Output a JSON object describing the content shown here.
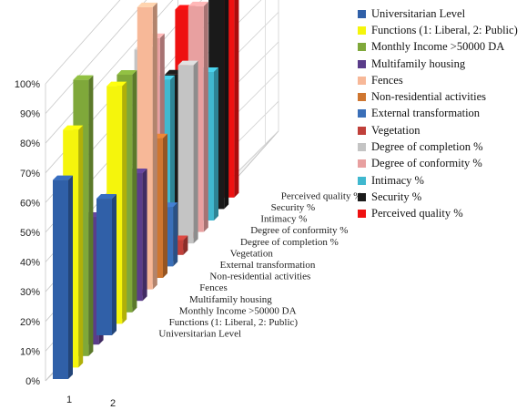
{
  "chart_data": {
    "type": "bar",
    "subtype": "3d-clustered-column",
    "categories": [
      "1",
      "2"
    ],
    "ylim": [
      0,
      100
    ],
    "y_ticks": [
      "0%",
      "10%",
      "20%",
      "30%",
      "40%",
      "50%",
      "60%",
      "70%",
      "80%",
      "90%",
      "100%"
    ],
    "grid": true,
    "legend_position": "right",
    "series": [
      {
        "name": "Universitarian Level",
        "color": "#3060a8",
        "values": [
          67,
          46
        ]
      },
      {
        "name": "Functions (1: Liberal, 2: Public)",
        "color": "#f5f50c",
        "values": [
          80,
          80
        ]
      },
      {
        "name": "Monthly Income >50000 DA",
        "color": "#7fa83a",
        "values": [
          93,
          80
        ]
      },
      {
        "name": "Multifamily housing",
        "color": "#5a3d8a",
        "values": [
          43,
          43
        ]
      },
      {
        "name": "Fences",
        "color": "#f7b898",
        "values": [
          3,
          95
        ]
      },
      {
        "name": "Non-residential activities",
        "color": "#cf7630",
        "values": [
          17,
          47
        ]
      },
      {
        "name": "External transformation",
        "color": "#3a6fb8",
        "values": [
          12,
          20
        ]
      },
      {
        "name": "Vegetation",
        "color": "#c0403a",
        "values": [
          15,
          5
        ]
      },
      {
        "name": "Degree of completion %",
        "color": "#c4c4c4",
        "values": [
          80,
          60
        ]
      },
      {
        "name": "Degree of conformity %",
        "color": "#e8a0a0",
        "values": [
          80,
          76
        ]
      },
      {
        "name": "Intimacy %",
        "color": "#40b8cf",
        "values": [
          62,
          50
        ]
      },
      {
        "name": "Security %",
        "color": "#1a1a1a",
        "values": [
          60,
          76
        ]
      },
      {
        "name": "Perceived quality %",
        "color": "#ee1111",
        "values": [
          78,
          70
        ]
      }
    ]
  }
}
